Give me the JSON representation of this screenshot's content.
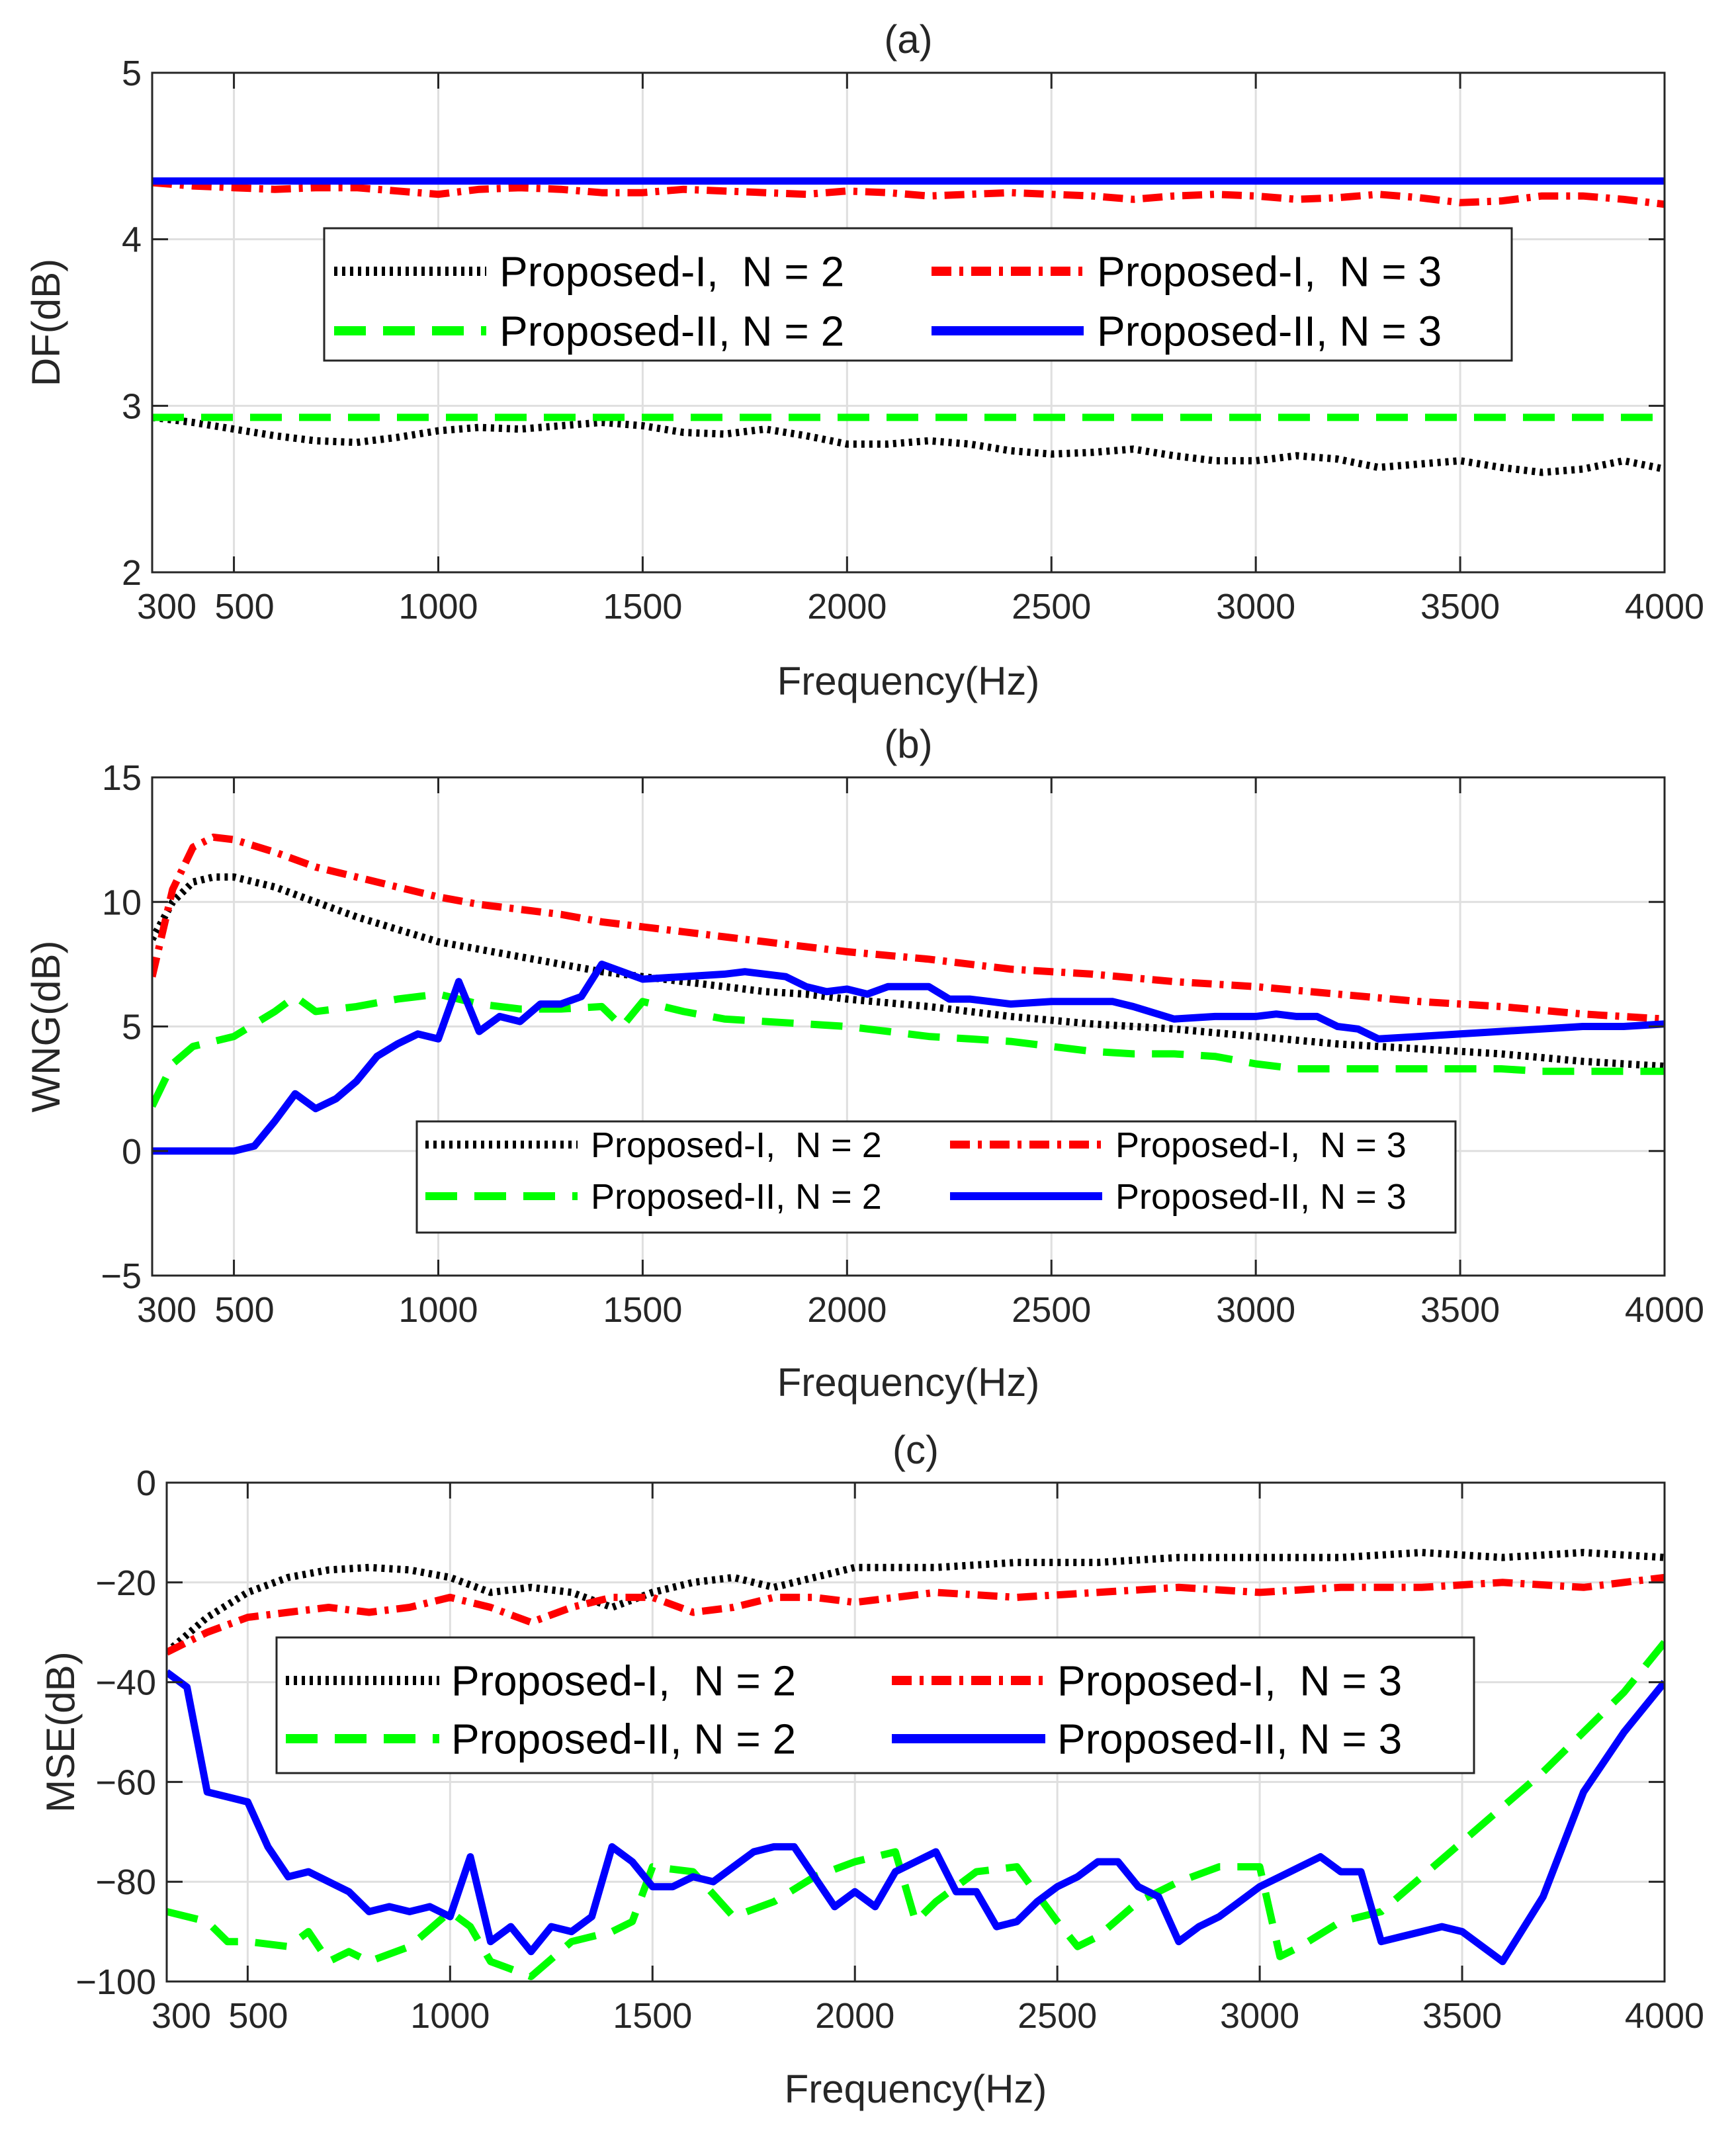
{
  "chart_data": [
    {
      "type": "line",
      "title": "(a)",
      "xlabel": "Frequency(Hz)",
      "ylabel": "DF(dB)",
      "xlim": [
        300,
        4000
      ],
      "ylim": [
        2,
        5
      ],
      "xticks": [
        300,
        500,
        1000,
        1500,
        2000,
        2500,
        3000,
        3500,
        4000
      ],
      "yticks": [
        2,
        3,
        4,
        5
      ],
      "grid": true,
      "legend": {
        "placement": "center",
        "columns": 2
      },
      "series": [
        {
          "name": "Proposed-I,  N = 2",
          "color": "#000000",
          "style": "dotted",
          "x": [
            300,
            400,
            500,
            600,
            700,
            800,
            900,
            1000,
            1100,
            1200,
            1300,
            1400,
            1500,
            1600,
            1700,
            1800,
            1900,
            2000,
            2100,
            2200,
            2300,
            2400,
            2500,
            2600,
            2700,
            2800,
            2900,
            3000,
            3100,
            3200,
            3300,
            3400,
            3500,
            3600,
            3700,
            3800,
            3900,
            4000
          ],
          "y": [
            2.93,
            2.9,
            2.86,
            2.82,
            2.79,
            2.78,
            2.81,
            2.85,
            2.87,
            2.86,
            2.88,
            2.9,
            2.88,
            2.84,
            2.83,
            2.86,
            2.82,
            2.77,
            2.77,
            2.79,
            2.77,
            2.73,
            2.71,
            2.72,
            2.74,
            2.7,
            2.67,
            2.67,
            2.7,
            2.68,
            2.63,
            2.65,
            2.67,
            2.63,
            2.6,
            2.62,
            2.67,
            2.62
          ]
        },
        {
          "name": "Proposed-I,  N = 3",
          "color": "#ff0000",
          "style": "dashdot",
          "x": [
            300,
            400,
            500,
            600,
            700,
            800,
            900,
            1000,
            1100,
            1200,
            1300,
            1400,
            1500,
            1600,
            1700,
            1800,
            1900,
            2000,
            2100,
            2200,
            2300,
            2400,
            2500,
            2600,
            2700,
            2800,
            2900,
            3000,
            3100,
            3200,
            3300,
            3400,
            3500,
            3600,
            3700,
            3800,
            3900,
            4000
          ],
          "y": [
            4.34,
            4.32,
            4.31,
            4.3,
            4.31,
            4.31,
            4.29,
            4.27,
            4.3,
            4.31,
            4.3,
            4.28,
            4.28,
            4.3,
            4.29,
            4.28,
            4.27,
            4.29,
            4.28,
            4.26,
            4.27,
            4.28,
            4.27,
            4.26,
            4.24,
            4.26,
            4.27,
            4.26,
            4.24,
            4.25,
            4.27,
            4.25,
            4.22,
            4.23,
            4.26,
            4.26,
            4.24,
            4.21
          ]
        },
        {
          "name": "Proposed-II, N = 2",
          "color": "#00ff00",
          "style": "dashed",
          "x": [
            300,
            4000
          ],
          "y": [
            2.93,
            2.93
          ]
        },
        {
          "name": "Proposed-II, N = 3",
          "color": "#0000ff",
          "style": "solid",
          "x": [
            300,
            4000
          ],
          "y": [
            4.35,
            4.35
          ]
        }
      ]
    },
    {
      "type": "line",
      "title": "(b)",
      "xlabel": "Frequency(Hz)",
      "ylabel": "WNG(dB)",
      "xlim": [
        300,
        4000
      ],
      "ylim": [
        -5,
        15
      ],
      "xticks": [
        300,
        500,
        1000,
        1500,
        2000,
        2500,
        3000,
        3500,
        4000
      ],
      "yticks": [
        -5,
        0,
        5,
        10,
        15
      ],
      "ytick_labels": [
        "−5",
        "0",
        "5",
        "10",
        "15"
      ],
      "grid": true,
      "legend": {
        "placement": "bottom-center",
        "columns": 2
      },
      "series": [
        {
          "name": "Proposed-I,  N = 2",
          "color": "#000000",
          "style": "dotted",
          "x": [
            300,
            350,
            400,
            450,
            500,
            600,
            700,
            800,
            900,
            1000,
            1100,
            1200,
            1300,
            1400,
            1500,
            1600,
            1700,
            1800,
            1900,
            2000,
            2200,
            2400,
            2600,
            2800,
            3000,
            3200,
            3400,
            3600,
            3800,
            4000
          ],
          "y": [
            8.5,
            10.0,
            10.8,
            11.0,
            11.0,
            10.6,
            10.0,
            9.4,
            8.9,
            8.4,
            8.1,
            7.8,
            7.5,
            7.2,
            7.0,
            6.8,
            6.6,
            6.4,
            6.3,
            6.1,
            5.8,
            5.4,
            5.1,
            4.9,
            4.6,
            4.3,
            4.1,
            3.9,
            3.6,
            3.4
          ]
        },
        {
          "name": "Proposed-I,  N = 3",
          "color": "#ff0000",
          "style": "dashdot",
          "x": [
            300,
            350,
            400,
            450,
            500,
            600,
            700,
            800,
            900,
            1000,
            1100,
            1200,
            1300,
            1400,
            1500,
            1600,
            1700,
            1800,
            1900,
            2000,
            2200,
            2400,
            2600,
            2800,
            3000,
            3200,
            3400,
            3600,
            3800,
            4000
          ],
          "y": [
            7.0,
            10.5,
            12.2,
            12.6,
            12.5,
            12.0,
            11.4,
            11.0,
            10.6,
            10.2,
            9.9,
            9.7,
            9.5,
            9.2,
            9.0,
            8.8,
            8.6,
            8.4,
            8.2,
            8.0,
            7.7,
            7.3,
            7.1,
            6.8,
            6.6,
            6.3,
            6.0,
            5.8,
            5.5,
            5.3
          ]
        },
        {
          "name": "Proposed-II, N = 2",
          "color": "#00ff00",
          "style": "dashed",
          "x": [
            300,
            350,
            400,
            450,
            500,
            550,
            600,
            650,
            700,
            800,
            900,
            1000,
            1050,
            1100,
            1200,
            1300,
            1400,
            1450,
            1500,
            1600,
            1700,
            1800,
            1900,
            2000,
            2100,
            2200,
            2300,
            2400,
            2500,
            2600,
            2700,
            2800,
            2900,
            3000,
            3100,
            3200,
            3300,
            3400,
            3500,
            3600,
            3700,
            3800,
            3900,
            4000
          ],
          "y": [
            1.8,
            3.5,
            4.2,
            4.4,
            4.6,
            5.1,
            5.6,
            6.2,
            5.6,
            5.8,
            6.1,
            6.3,
            6.1,
            5.9,
            5.7,
            5.7,
            5.8,
            5.0,
            6.0,
            5.6,
            5.3,
            5.2,
            5.1,
            5.0,
            4.8,
            4.6,
            4.5,
            4.4,
            4.2,
            4.0,
            3.9,
            3.9,
            3.8,
            3.5,
            3.3,
            3.3,
            3.3,
            3.3,
            3.3,
            3.3,
            3.2,
            3.2,
            3.2,
            3.2
          ]
        },
        {
          "name": "Proposed-II, N = 3",
          "color": "#0000ff",
          "style": "solid",
          "x": [
            300,
            400,
            500,
            550,
            600,
            650,
            700,
            750,
            800,
            850,
            900,
            950,
            1000,
            1050,
            1100,
            1150,
            1200,
            1250,
            1300,
            1350,
            1400,
            1450,
            1500,
            1600,
            1700,
            1750,
            1800,
            1850,
            1900,
            1950,
            2000,
            2050,
            2100,
            2150,
            2200,
            2250,
            2300,
            2350,
            2400,
            2500,
            2600,
            2650,
            2700,
            2800,
            2900,
            3000,
            3050,
            3100,
            3150,
            3200,
            3250,
            3300,
            3400,
            3500,
            3600,
            3700,
            3800,
            3900,
            4000
          ],
          "y": [
            0.0,
            0.0,
            0.0,
            0.2,
            1.2,
            2.3,
            1.7,
            2.1,
            2.8,
            3.8,
            4.3,
            4.7,
            4.5,
            6.8,
            4.8,
            5.4,
            5.2,
            5.9,
            5.9,
            6.2,
            7.5,
            7.2,
            6.9,
            7.0,
            7.1,
            7.2,
            7.1,
            7.0,
            6.6,
            6.4,
            6.5,
            6.3,
            6.6,
            6.6,
            6.6,
            6.1,
            6.1,
            6.0,
            5.9,
            6.0,
            6.0,
            6.0,
            5.8,
            5.3,
            5.4,
            5.4,
            5.5,
            5.4,
            5.4,
            5.0,
            4.9,
            4.5,
            4.6,
            4.7,
            4.8,
            4.9,
            5.0,
            5.0,
            5.1
          ]
        }
      ]
    },
    {
      "type": "line",
      "title": "(c)",
      "xlabel": "Frequency(Hz)",
      "ylabel": "MSE(dB)",
      "xlim": [
        300,
        4000
      ],
      "ylim": [
        -100,
        0
      ],
      "xticks": [
        300,
        500,
        1000,
        1500,
        2000,
        2500,
        3000,
        3500,
        4000
      ],
      "yticks": [
        -100,
        -80,
        -60,
        -40,
        -20,
        0
      ],
      "ytick_labels": [
        "−100",
        "−80",
        "−60",
        "−40",
        "−20",
        "0"
      ],
      "grid": true,
      "legend": {
        "placement": "center",
        "columns": 2
      },
      "series": [
        {
          "name": "Proposed-I,  N = 2",
          "color": "#000000",
          "style": "dotted",
          "x": [
            300,
            400,
            500,
            600,
            700,
            800,
            900,
            1000,
            1100,
            1200,
            1300,
            1400,
            1500,
            1600,
            1700,
            1800,
            1900,
            2000,
            2200,
            2400,
            2600,
            2800,
            3000,
            3200,
            3400,
            3600,
            3800,
            4000
          ],
          "y": [
            -34,
            -27,
            -22,
            -19,
            -17.5,
            -17,
            -17.5,
            -19,
            -22,
            -21,
            -22,
            -25,
            -22,
            -20,
            -19,
            -21,
            -19,
            -17,
            -17,
            -16,
            -16,
            -15,
            -15,
            -15,
            -14,
            -15,
            -14,
            -15
          ]
        },
        {
          "name": "Proposed-I,  N = 3",
          "color": "#ff0000",
          "style": "dashdot",
          "x": [
            300,
            400,
            500,
            600,
            700,
            800,
            900,
            1000,
            1100,
            1200,
            1300,
            1400,
            1500,
            1600,
            1700,
            1800,
            1900,
            2000,
            2200,
            2400,
            2600,
            2800,
            3000,
            3200,
            3400,
            3600,
            3800,
            4000
          ],
          "y": [
            -34,
            -30,
            -27,
            -26,
            -25,
            -26,
            -25,
            -23,
            -25,
            -28,
            -25,
            -23,
            -23,
            -26,
            -25,
            -23,
            -23,
            -24,
            -22,
            -23,
            -22,
            -21,
            -22,
            -21,
            -21,
            -20,
            -21,
            -19
          ]
        },
        {
          "name": "Proposed-II, N = 2",
          "color": "#00ff00",
          "style": "dashed",
          "x": [
            300,
            400,
            450,
            500,
            600,
            650,
            700,
            750,
            800,
            900,
            1000,
            1050,
            1100,
            1200,
            1300,
            1400,
            1450,
            1500,
            1600,
            1700,
            1800,
            1900,
            2000,
            2100,
            2150,
            2200,
            2300,
            2400,
            2500,
            2550,
            2600,
            2700,
            2800,
            2900,
            3000,
            3050,
            3100,
            3200,
            3300,
            3400,
            3500,
            3600,
            3700,
            3800,
            3900,
            4000
          ],
          "y": [
            -86,
            -88,
            -92,
            -92,
            -93,
            -90,
            -96,
            -94,
            -96,
            -93,
            -86,
            -89,
            -96,
            -99,
            -92,
            -90,
            -88,
            -77,
            -78,
            -87,
            -84,
            -79,
            -76,
            -74,
            -88,
            -84,
            -78,
            -77,
            -88,
            -93,
            -91,
            -84,
            -80,
            -77,
            -77,
            -95,
            -93,
            -88,
            -86,
            -79,
            -72,
            -65,
            -58,
            -50,
            -42,
            -32
          ]
        },
        {
          "name": "Proposed-II, N = 3",
          "color": "#0000ff",
          "style": "solid",
          "x": [
            300,
            350,
            400,
            450,
            500,
            550,
            600,
            650,
            700,
            750,
            800,
            850,
            900,
            950,
            1000,
            1050,
            1100,
            1150,
            1200,
            1250,
            1300,
            1350,
            1400,
            1450,
            1500,
            1550,
            1600,
            1650,
            1700,
            1750,
            1800,
            1850,
            1900,
            1950,
            2000,
            2050,
            2100,
            2150,
            2200,
            2250,
            2300,
            2350,
            2400,
            2450,
            2500,
            2550,
            2600,
            2650,
            2700,
            2750,
            2800,
            2850,
            2900,
            2950,
            3000,
            3050,
            3100,
            3150,
            3200,
            3250,
            3300,
            3350,
            3400,
            3450,
            3500,
            3550,
            3600,
            3700,
            3800,
            3900,
            4000
          ],
          "y": [
            -38,
            -41,
            -62,
            -63,
            -64,
            -73,
            -79,
            -78,
            -80,
            -82,
            -86,
            -85,
            -86,
            -85,
            -87,
            -75,
            -92,
            -89,
            -94,
            -89,
            -90,
            -87,
            -73,
            -76,
            -81,
            -81,
            -79,
            -80,
            -77,
            -74,
            -73,
            -73,
            -79,
            -85,
            -82,
            -85,
            -78,
            -76,
            -74,
            -82,
            -82,
            -89,
            -88,
            -84,
            -81,
            -79,
            -76,
            -76,
            -81,
            -83,
            -92,
            -89,
            -87,
            -84,
            -81,
            -79,
            -77,
            -75,
            -78,
            -78,
            -92,
            -91,
            -90,
            -89,
            -90,
            -93,
            -96,
            -83,
            -62,
            -50,
            -40
          ]
        }
      ]
    }
  ]
}
